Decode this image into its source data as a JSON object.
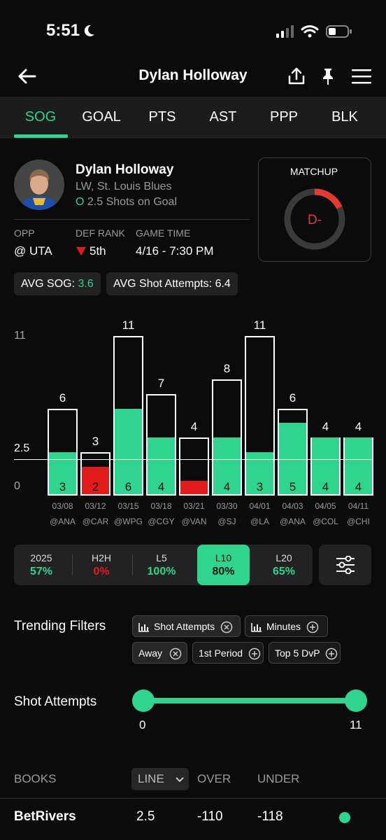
{
  "status_bar": {
    "time": "5:51"
  },
  "header": {
    "title": "Dylan Holloway"
  },
  "tabs": [
    {
      "label": "SOG",
      "active": true
    },
    {
      "label": "GOAL"
    },
    {
      "label": "PTS"
    },
    {
      "label": "AST"
    },
    {
      "label": "PPP"
    },
    {
      "label": "BLK"
    }
  ],
  "player": {
    "name": "Dylan Holloway",
    "position_team": "LW, St. Louis Blues",
    "line_marker": "O",
    "line_text": "2.5 Shots on Goal"
  },
  "game_info": {
    "opp_label": "OPP",
    "opp_value": "@ UTA",
    "def_rank_label": "DEF RANK",
    "def_rank_value": "5th",
    "game_time_label": "GAME TIME",
    "game_time_value": "4/16 - 7:30 PM"
  },
  "matchup": {
    "label": "MATCHUP",
    "grade": "D-",
    "level": 0.18,
    "accent": "#e53935"
  },
  "averages": {
    "sog_label": "AVG SOG:",
    "sog_value": "3.6",
    "attempts_label": "AVG Shot Attempts:",
    "attempts_value": "6.4"
  },
  "chart_data": {
    "type": "bar",
    "y_axis_ticks": [
      "11",
      "2.5",
      "0"
    ],
    "line": 2.5,
    "ylim": [
      0,
      11
    ],
    "categories": [
      "03/08",
      "03/12",
      "03/15",
      "03/18",
      "03/21",
      "03/30",
      "04/01",
      "04/03",
      "04/05",
      "04/11"
    ],
    "opponents": [
      "@ANA",
      "@CAR",
      "@WPG",
      "@CGY",
      "@VAN",
      "@SJ",
      "@LA",
      "@ANA",
      "@COL",
      "@CHI"
    ],
    "series": [
      {
        "name": "Shot Attempts",
        "values": [
          6,
          3,
          11,
          7,
          4,
          8,
          11,
          6,
          4,
          4
        ]
      },
      {
        "name": "Shots on Goal",
        "values": [
          3,
          2,
          6,
          4,
          1,
          4,
          3,
          5,
          4,
          4
        ]
      }
    ],
    "inner_labels": [
      "3",
      "2",
      "6",
      "4",
      "",
      "4",
      "3",
      "5",
      "4",
      "4"
    ],
    "colors": {
      "over": "#2fd58e",
      "under": "#e21b1b"
    }
  },
  "splits": [
    {
      "label": "2025",
      "value": "57%",
      "color": "#2fd58e"
    },
    {
      "label": "H2H",
      "value": "0%",
      "color": "#e21b1b"
    },
    {
      "label": "L5",
      "value": "100%",
      "color": "#2fd58e"
    },
    {
      "label": "L10",
      "value": "80%",
      "active": true
    },
    {
      "label": "L20",
      "value": "65%",
      "color": "#2fd58e"
    }
  ],
  "trending": {
    "title": "Trending Filters",
    "chips": [
      {
        "label": "Shot Attempts",
        "icon": "bar-chart-icon",
        "state": "remove"
      },
      {
        "label": "Minutes",
        "icon": "bar-chart-icon",
        "state": "add"
      },
      {
        "label": "Away",
        "state": "remove"
      },
      {
        "label": "1st Period",
        "state": "add"
      },
      {
        "label": "Top 5 DvP",
        "state": "add"
      }
    ]
  },
  "range_filter": {
    "title": "Shot Attempts",
    "min": "0",
    "max": "11"
  },
  "books": {
    "headers": {
      "books": "BOOKS",
      "line": "LINE",
      "over": "OVER",
      "under": "UNDER"
    },
    "rows": [
      {
        "book": "BetRivers",
        "line": "2.5",
        "over": "-110",
        "under": "-118"
      }
    ]
  }
}
